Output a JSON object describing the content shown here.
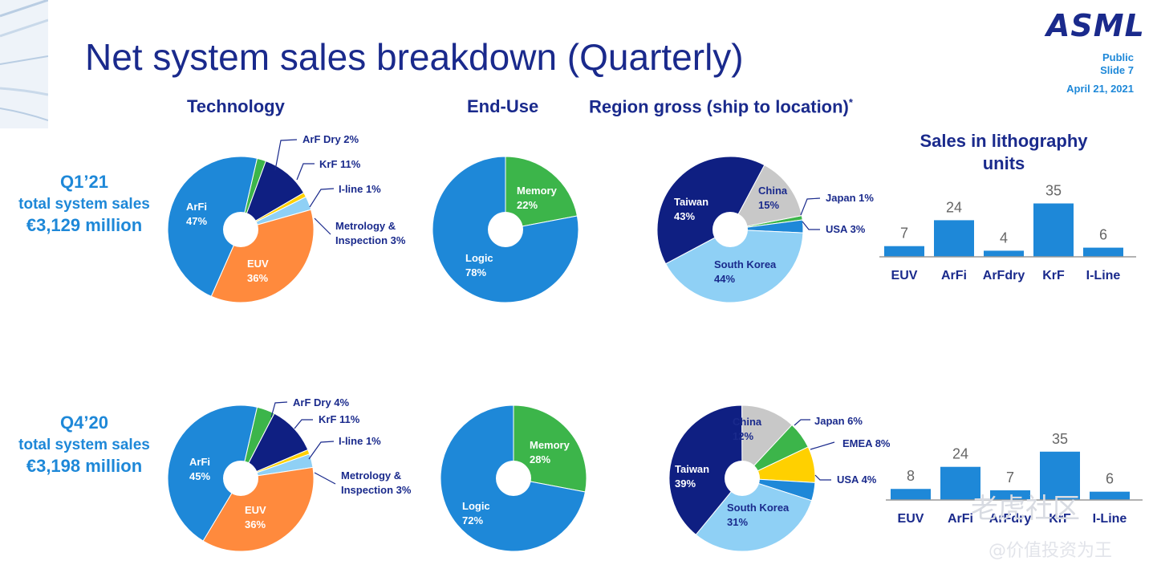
{
  "title": "Net system sales breakdown (Quarterly)",
  "logo": "ASML",
  "meta": {
    "line1": "Public",
    "line2": "Slide 7",
    "date": "April 21, 2021"
  },
  "headers": {
    "technology": "Technology",
    "end_use": "End-Use",
    "region": "Region gross (ship to location)",
    "region_note": "*",
    "units": "Sales in lithography units"
  },
  "quarters": [
    {
      "label": "Q1’21",
      "sub": "total system sales",
      "value": "€3,129 million"
    },
    {
      "label": "Q4’20",
      "sub": "total system sales",
      "value": "€3,198 million"
    }
  ],
  "watermark": {
    "line1": "老虎社区",
    "line2": "@价值投资为王"
  },
  "colors": {
    "navy": "#1a2a8c",
    "blue": "#1e88d8",
    "light_blue": "#8fd0f5",
    "green": "#3cb54a",
    "orange": "#ff8a3d",
    "yellow": "#ffd000",
    "gray": "#c8c8c8",
    "dark_navy": "#0f1f82"
  },
  "chart_data": [
    {
      "type": "pie",
      "id": "q1-technology",
      "slices": [
        {
          "label": "ArF Dry",
          "pct_text": "2%",
          "value": 2,
          "color": "#3cb54a"
        },
        {
          "label": "KrF",
          "pct_text": "11%",
          "value": 11,
          "color": "#0f1f82"
        },
        {
          "label": "I-line",
          "pct_text": "1%",
          "value": 1,
          "color": "#ffd000"
        },
        {
          "label": "Metrology & Inspection",
          "pct_text": "3%",
          "value": 3,
          "color": "#8fd0f5"
        },
        {
          "label": "EUV",
          "pct_text": "36%",
          "value": 36,
          "color": "#ff8a3d"
        },
        {
          "label": "ArFi",
          "pct_text": "47%",
          "value": 47,
          "color": "#1e88d8"
        }
      ],
      "callouts": [
        {
          "text": "ArF Dry 2%"
        },
        {
          "text": "KrF 11%"
        },
        {
          "text": "I-line 1%"
        },
        {
          "text": "Metrology &"
        },
        {
          "text": "Inspection 3%"
        }
      ]
    },
    {
      "type": "pie",
      "id": "q1-enduse",
      "slices": [
        {
          "label": "Memory",
          "pct_text": "22%",
          "value": 22,
          "color": "#3cb54a"
        },
        {
          "label": "Logic",
          "pct_text": "78%",
          "value": 78,
          "color": "#1e88d8"
        }
      ]
    },
    {
      "type": "pie",
      "id": "q1-region",
      "slices": [
        {
          "label": "Japan",
          "pct_text": "1%",
          "value": 1,
          "color": "#3cb54a"
        },
        {
          "label": "USA",
          "pct_text": "3%",
          "value": 3,
          "color": "#1e88d8"
        },
        {
          "label": "South Korea",
          "pct_text": "44%",
          "value": 44,
          "color": "#8fd0f5"
        },
        {
          "label": "Taiwan",
          "pct_text": "43%",
          "value": 43,
          "color": "#0f1f82"
        },
        {
          "label": "China",
          "pct_text": "15%",
          "value": 15,
          "color": "#c8c8c8"
        }
      ],
      "callouts": [
        {
          "text": "Japan 1%"
        },
        {
          "text": "USA 3%"
        }
      ]
    },
    {
      "type": "bar",
      "id": "q1-units",
      "categories": [
        "EUV",
        "ArFi",
        "ArFdry",
        "KrF",
        "I-Line"
      ],
      "values": [
        7,
        24,
        4,
        35,
        6
      ]
    },
    {
      "type": "pie",
      "id": "q4-technology",
      "slices": [
        {
          "label": "ArF Dry",
          "pct_text": "4%",
          "value": 4,
          "color": "#3cb54a"
        },
        {
          "label": "KrF",
          "pct_text": "11%",
          "value": 11,
          "color": "#0f1f82"
        },
        {
          "label": "I-line",
          "pct_text": "1%",
          "value": 1,
          "color": "#ffd000"
        },
        {
          "label": "Metrology & Inspection",
          "pct_text": "3%",
          "value": 3,
          "color": "#8fd0f5"
        },
        {
          "label": "EUV",
          "pct_text": "36%",
          "value": 36,
          "color": "#ff8a3d"
        },
        {
          "label": "ArFi",
          "pct_text": "45%",
          "value": 45,
          "color": "#1e88d8"
        }
      ],
      "callouts": [
        {
          "text": "ArF Dry 4%"
        },
        {
          "text": "KrF 11%"
        },
        {
          "text": "I-line 1%"
        },
        {
          "text": "Metrology &"
        },
        {
          "text": "Inspection 3%"
        }
      ]
    },
    {
      "type": "pie",
      "id": "q4-enduse",
      "slices": [
        {
          "label": "Memory",
          "pct_text": "28%",
          "value": 28,
          "color": "#3cb54a"
        },
        {
          "label": "Logic",
          "pct_text": "72%",
          "value": 72,
          "color": "#1e88d8"
        }
      ]
    },
    {
      "type": "pie",
      "id": "q4-region",
      "slices": [
        {
          "label": "Japan",
          "pct_text": "6%",
          "value": 6,
          "color": "#3cb54a"
        },
        {
          "label": "EMEA",
          "pct_text": "8%",
          "value": 8,
          "color": "#ffd000"
        },
        {
          "label": "USA",
          "pct_text": "4%",
          "value": 4,
          "color": "#1e88d8"
        },
        {
          "label": "South Korea",
          "pct_text": "31%",
          "value": 31,
          "color": "#8fd0f5"
        },
        {
          "label": "Taiwan",
          "pct_text": "39%",
          "value": 39,
          "color": "#0f1f82"
        },
        {
          "label": "China",
          "pct_text": "12%",
          "value": 12,
          "color": "#c8c8c8"
        }
      ],
      "callouts": [
        {
          "text": "Japan 6%"
        },
        {
          "text": "EMEA 8%"
        },
        {
          "text": "USA 4%"
        }
      ]
    },
    {
      "type": "bar",
      "id": "q4-units",
      "categories": [
        "EUV",
        "ArFi",
        "ArFdry",
        "KrF",
        "I-Line"
      ],
      "values": [
        8,
        24,
        7,
        35,
        6
      ]
    }
  ]
}
